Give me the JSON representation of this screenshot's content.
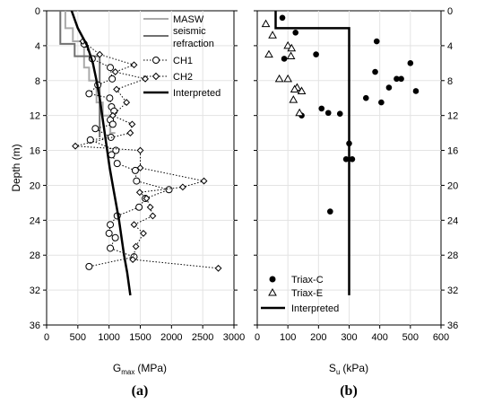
{
  "chart_data": [
    {
      "type": "line",
      "panel_label": "(a)",
      "xlabel": "G",
      "xlabel_sub": "max",
      "xlabel_unit": "(MPa)",
      "ylabel": "Depth (m)",
      "xlim": [
        0,
        3000
      ],
      "ylim": [
        0,
        36
      ],
      "y_inverted": true,
      "xticks": [
        0,
        500,
        1000,
        1500,
        2000,
        2500,
        3000
      ],
      "yticks": [
        0,
        4,
        8,
        12,
        16,
        20,
        24,
        28,
        32,
        36
      ],
      "legend_position": "top-right",
      "series": [
        {
          "name": "MASW",
          "color": "#aaaaaa",
          "style": "step",
          "points": [
            [
              300,
              0
            ],
            [
              300,
              2
            ],
            [
              420,
              2
            ],
            [
              420,
              3.5
            ],
            [
              600,
              3.5
            ],
            [
              600,
              6.5
            ],
            [
              680,
              6.5
            ],
            [
              680,
              8
            ],
            [
              800,
              8
            ],
            [
              800,
              10.5
            ],
            [
              900,
              10.5
            ],
            [
              900,
              12
            ],
            [
              1020,
              12
            ],
            [
              1020,
              14
            ],
            [
              1100,
              14
            ]
          ]
        },
        {
          "name": "seismic refraction",
          "color": "#707070",
          "style": "step",
          "points": [
            [
              220,
              0
            ],
            [
              220,
              3.8
            ],
            [
              450,
              3.8
            ],
            [
              450,
              5.2
            ],
            [
              850,
              5.2
            ],
            [
              850,
              14.5
            ]
          ]
        },
        {
          "name": "CH1",
          "color": "#000000",
          "style": "dotted-circle",
          "points": [
            [
              600,
              3.8
            ],
            [
              730,
              5.5
            ],
            [
              1020,
              6.5
            ],
            [
              1050,
              7.8
            ],
            [
              820,
              8.5
            ],
            [
              680,
              9.5
            ],
            [
              1010,
              10
            ],
            [
              1040,
              11
            ],
            [
              1080,
              11.5
            ],
            [
              1020,
              12.5
            ],
            [
              1060,
              13
            ],
            [
              780,
              13.5
            ],
            [
              1030,
              14.5
            ],
            [
              700,
              14.8
            ],
            [
              1110,
              16
            ],
            [
              1040,
              16.5
            ],
            [
              1130,
              17.5
            ],
            [
              1420,
              18.3
            ],
            [
              1440,
              19.5
            ],
            [
              1960,
              20.5
            ],
            [
              1580,
              21.5
            ],
            [
              1480,
              22.5
            ],
            [
              1130,
              23.5
            ],
            [
              1020,
              24.5
            ],
            [
              1000,
              25.5
            ],
            [
              1100,
              26
            ],
            [
              1020,
              27.2
            ],
            [
              1400,
              28.2
            ],
            [
              680,
              29.3
            ]
          ]
        },
        {
          "name": "CH2",
          "color": "#000000",
          "style": "dotted-diamond",
          "points": [
            [
              580,
              3.5
            ],
            [
              850,
              5
            ],
            [
              1400,
              6.2
            ],
            [
              1100,
              7
            ],
            [
              1580,
              7.8
            ],
            [
              1120,
              9
            ],
            [
              1280,
              10.5
            ],
            [
              1060,
              12
            ],
            [
              1370,
              13
            ],
            [
              1340,
              14
            ],
            [
              460,
              15.5
            ],
            [
              1500,
              16
            ],
            [
              1500,
              18
            ],
            [
              2520,
              19.5
            ],
            [
              2180,
              20.2
            ],
            [
              1490,
              20.8
            ],
            [
              1600,
              21.5
            ],
            [
              1660,
              22.5
            ],
            [
              1700,
              23.5
            ],
            [
              1400,
              24.5
            ],
            [
              1550,
              25.5
            ],
            [
              1430,
              27
            ],
            [
              1380,
              28.5
            ],
            [
              2750,
              29.5
            ]
          ]
        },
        {
          "name": "Interpreted",
          "color": "#000000",
          "style": "thick",
          "points": [
            [
              400,
              0
            ],
            [
              500,
              2
            ],
            [
              650,
              4
            ],
            [
              740,
              6
            ],
            [
              800,
              8
            ],
            [
              850,
              10
            ],
            [
              890,
              12
            ],
            [
              930,
              14
            ],
            [
              970,
              16
            ],
            [
              1010,
              18
            ],
            [
              1060,
              20
            ],
            [
              1110,
              22
            ],
            [
              1160,
              24
            ],
            [
              1200,
              26
            ],
            [
              1240,
              28
            ],
            [
              1290,
              30
            ],
            [
              1340,
              32.6
            ]
          ]
        }
      ]
    },
    {
      "type": "scatter",
      "panel_label": "(b)",
      "xlabel": "S",
      "xlabel_sub": "u",
      "xlabel_unit": "(kPa)",
      "ylabel": "",
      "xlim": [
        0,
        600
      ],
      "ylim": [
        0,
        36
      ],
      "y_inverted": true,
      "xticks": [
        0,
        100,
        200,
        300,
        400,
        500,
        600
      ],
      "yticks": [
        0,
        4,
        8,
        12,
        16,
        20,
        24,
        28,
        32,
        36
      ],
      "legend_position": "bottom-left",
      "series": [
        {
          "name": "Triax-C",
          "marker": "filled-circle",
          "points": [
            [
              82,
              0.8
            ],
            [
              125,
              2.5
            ],
            [
              88,
              5.5
            ],
            [
              192,
              5
            ],
            [
              390,
              3.5
            ],
            [
              500,
              6
            ],
            [
              385,
              7
            ],
            [
              470,
              7.8
            ],
            [
              455,
              7.8
            ],
            [
              430,
              8.8
            ],
            [
              518,
              9.2
            ],
            [
              355,
              10
            ],
            [
              405,
              10.5
            ],
            [
              210,
              11.2
            ],
            [
              232,
              11.7
            ],
            [
              270,
              11.8
            ],
            [
              145,
              12
            ],
            [
              300,
              15.2
            ],
            [
              290,
              17
            ],
            [
              310,
              17
            ],
            [
              238,
              23
            ]
          ]
        },
        {
          "name": "Triax-E",
          "marker": "open-triangle",
          "points": [
            [
              28,
              1.5
            ],
            [
              50,
              2.8
            ],
            [
              100,
              4
            ],
            [
              112,
              4.3
            ],
            [
              38,
              5
            ],
            [
              110,
              5.2
            ],
            [
              72,
              7.8
            ],
            [
              100,
              7.8
            ],
            [
              130,
              8.8
            ],
            [
              122,
              9
            ],
            [
              145,
              9.2
            ],
            [
              118,
              10.2
            ],
            [
              138,
              11.7
            ]
          ]
        },
        {
          "name": "Interpreted",
          "style": "thick",
          "points": [
            [
              60,
              0
            ],
            [
              60,
              2
            ],
            [
              300,
              2
            ],
            [
              300,
              32.6
            ]
          ]
        }
      ]
    }
  ]
}
